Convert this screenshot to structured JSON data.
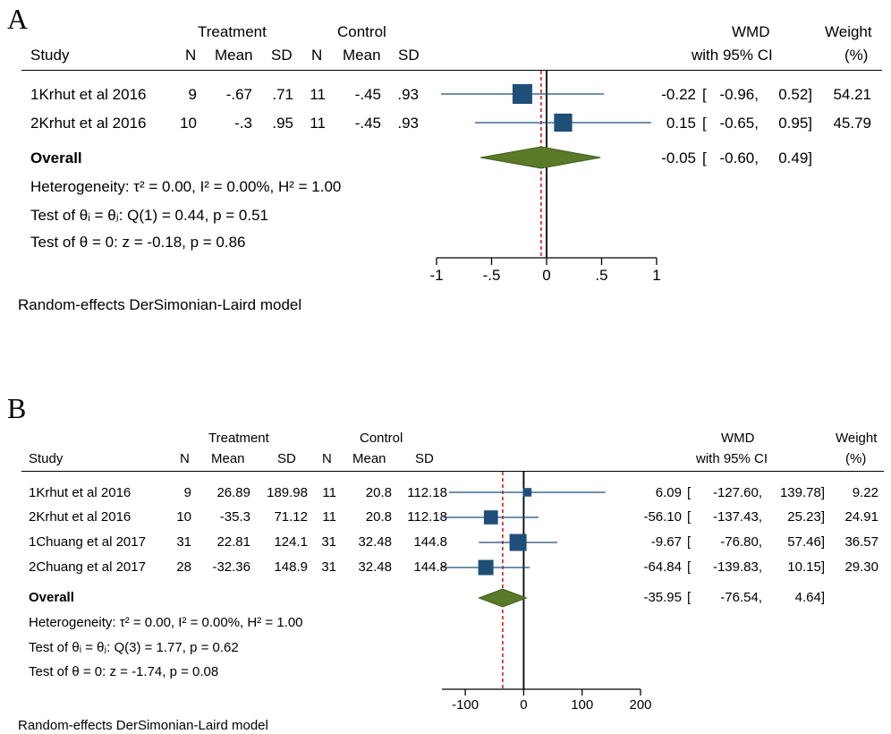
{
  "colors": {
    "marker": "#1f4e79",
    "diamond": "#5a7a2a",
    "diamond_edge": "#3f5f1c",
    "overall_line": "#d42020",
    "axis": "#000000"
  },
  "chart_data": [
    {
      "panel": "A",
      "type": "forest",
      "headers": {
        "study": "Study",
        "treatment": "Treatment",
        "control": "Control",
        "n": "N",
        "mean": "Mean",
        "sd": "SD",
        "effect_top": "WMD",
        "effect_bottom": "with 95% CI",
        "weight_top": "Weight",
        "weight_bottom": "(%)"
      },
      "studies": [
        {
          "study": "1Krhut et al 2016",
          "t_n": "9",
          "t_mean": "-.67",
          "t_sd": ".71",
          "c_n": "11",
          "c_mean": "-.45",
          "c_sd": ".93",
          "wmd": -0.22,
          "lo": -0.96,
          "hi": 0.52,
          "weight": 54.21,
          "wmd_label": "-0.22",
          "lo_label": "-0.96,",
          "hi_label": "0.52]",
          "weight_label": "54.21"
        },
        {
          "study": "2Krhut et al 2016",
          "t_n": "10",
          "t_mean": "-.3",
          "t_sd": ".95",
          "c_n": "11",
          "c_mean": "-.45",
          "c_sd": ".93",
          "wmd": 0.15,
          "lo": -0.65,
          "hi": 0.95,
          "weight": 45.79,
          "wmd_label": "0.15",
          "lo_label": "-0.65,",
          "hi_label": "0.95]",
          "weight_label": "45.79"
        }
      ],
      "overall": {
        "label": "Overall",
        "wmd": -0.05,
        "lo": -0.6,
        "hi": 0.49,
        "wmd_label": "-0.05",
        "lo_label": "-0.60,",
        "hi_label": "0.49]"
      },
      "bracket": "[",
      "stats": {
        "heterogeneity": "Heterogeneity: τ² = 0.00, I² = 0.00%, H² = 1.00",
        "test_equal": "Test of θᵢ = θⱼ: Q(1) = 0.44, p = 0.51",
        "test_zero": "Test of θ = 0: z = -0.18, p = 0.86"
      },
      "model": "Random-effects DerSimonian-Laird model",
      "x_ticks": [
        -1,
        -0.5,
        0,
        0.5,
        1
      ],
      "x_tick_labels": [
        "-1",
        "-.5",
        "0",
        ".5",
        "1"
      ],
      "xlim": [
        -1,
        1
      ]
    },
    {
      "panel": "B",
      "type": "forest",
      "headers": {
        "study": "Study",
        "treatment": "Treatment",
        "control": "Control",
        "n": "N",
        "mean": "Mean",
        "sd": "SD",
        "effect_top": "WMD",
        "effect_bottom": "with 95% CI",
        "weight_top": "Weight",
        "weight_bottom": "(%)"
      },
      "studies": [
        {
          "study": "1Krhut et al 2016",
          "t_n": "9",
          "t_mean": "26.89",
          "t_sd": "189.98",
          "c_n": "11",
          "c_mean": "20.8",
          "c_sd": "112.18",
          "wmd": 6.09,
          "lo": -127.6,
          "hi": 139.78,
          "weight": 9.22,
          "wmd_label": "6.09",
          "lo_label": "-127.60,",
          "hi_label": "139.78]",
          "weight_label": "9.22"
        },
        {
          "study": "2Krhut et al 2016",
          "t_n": "10",
          "t_mean": "-35.3",
          "t_sd": "71.12",
          "c_n": "11",
          "c_mean": "20.8",
          "c_sd": "112.18",
          "wmd": -56.1,
          "lo": -137.43,
          "hi": 25.23,
          "weight": 24.91,
          "wmd_label": "-56.10",
          "lo_label": "-137.43,",
          "hi_label": "25.23]",
          "weight_label": "24.91"
        },
        {
          "study": "1Chuang et al 2017",
          "t_n": "31",
          "t_mean": "22.81",
          "t_sd": "124.1",
          "c_n": "31",
          "c_mean": "32.48",
          "c_sd": "144.8",
          "wmd": -9.67,
          "lo": -76.8,
          "hi": 57.46,
          "weight": 36.57,
          "wmd_label": "-9.67",
          "lo_label": "-76.80,",
          "hi_label": "57.46]",
          "weight_label": "36.57"
        },
        {
          "study": "2Chuang et al 2017",
          "t_n": "28",
          "t_mean": "-32.36",
          "t_sd": "148.9",
          "c_n": "31",
          "c_mean": "32.48",
          "c_sd": "144.8",
          "wmd": -64.84,
          "lo": -139.83,
          "hi": 10.15,
          "weight": 29.3,
          "wmd_label": "-64.84",
          "lo_label": "-139.83,",
          "hi_label": "10.15]",
          "weight_label": "29.30"
        }
      ],
      "overall": {
        "label": "Overall",
        "wmd": -35.95,
        "lo": -76.54,
        "hi": 4.64,
        "wmd_label": "-35.95",
        "lo_label": "-76.54,",
        "hi_label": "4.64]"
      },
      "bracket": "[",
      "stats": {
        "heterogeneity": "Heterogeneity: τ² = 0.00, I² = 0.00%, H² = 1.00",
        "test_equal": "Test of θᵢ = θⱼ: Q(3) = 1.77, p = 0.62",
        "test_zero": "Test of θ = 0: z = -1.74, p = 0.08"
      },
      "model": "Random-effects DerSimonian-Laird model",
      "x_ticks": [
        -100,
        0,
        100,
        200
      ],
      "x_tick_labels": [
        "-100",
        "0",
        "100",
        "200"
      ],
      "xlim": [
        -140,
        200
      ]
    }
  ]
}
